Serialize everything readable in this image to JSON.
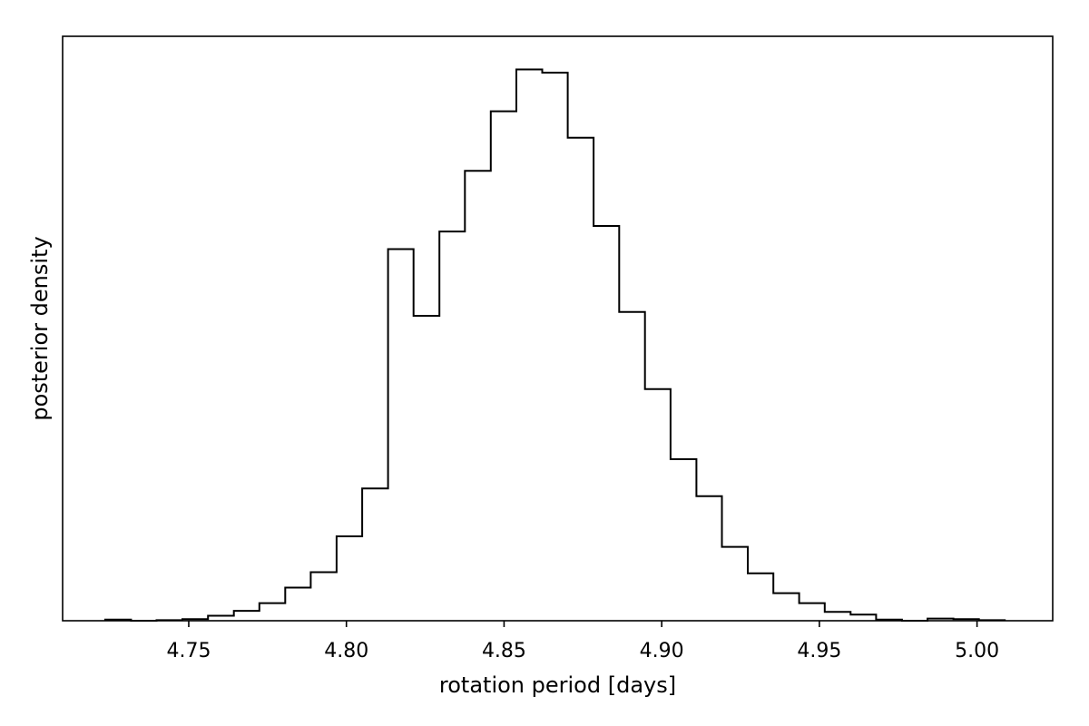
{
  "chart_data": {
    "type": "histogram",
    "histtype": "step",
    "xlabel": "rotation period [days]",
    "ylabel": "posterior density",
    "xlim": [
      4.71,
      5.024
    ],
    "ylim": [
      0,
      1.06
    ],
    "y_ticks_shown": false,
    "grid": false,
    "line_color": "#000000",
    "x_ticks": [
      {
        "value": 4.75,
        "label": "4.75"
      },
      {
        "value": 4.8,
        "label": "4.80"
      },
      {
        "value": 4.85,
        "label": "4.85"
      },
      {
        "value": 4.9,
        "label": "4.90"
      },
      {
        "value": 4.95,
        "label": "4.95"
      },
      {
        "value": 5.0,
        "label": "5.00"
      }
    ],
    "bin_edges": [
      4.7235,
      4.7317,
      4.7398,
      4.748,
      4.7561,
      4.7643,
      4.7724,
      4.7806,
      4.7887,
      4.7969,
      4.805,
      4.8132,
      4.8213,
      4.8295,
      4.8376,
      4.8458,
      4.8539,
      4.8621,
      4.8702,
      4.8784,
      4.8865,
      4.8947,
      4.9028,
      4.911,
      4.9191,
      4.9273,
      4.9354,
      4.9436,
      4.9517,
      4.9599,
      4.968,
      4.9762,
      4.9843,
      4.9925,
      5.0006,
      5.0088
    ],
    "densities": [
      0.002,
      0.0,
      0.001,
      0.003,
      0.009,
      0.018,
      0.032,
      0.06,
      0.088,
      0.153,
      0.24,
      0.674,
      0.553,
      0.706,
      0.816,
      0.924,
      1.0,
      0.994,
      0.876,
      0.716,
      0.56,
      0.42,
      0.293,
      0.226,
      0.134,
      0.086,
      0.05,
      0.032,
      0.016,
      0.011,
      0.002,
      0.0,
      0.004,
      0.003,
      0.001
    ]
  }
}
